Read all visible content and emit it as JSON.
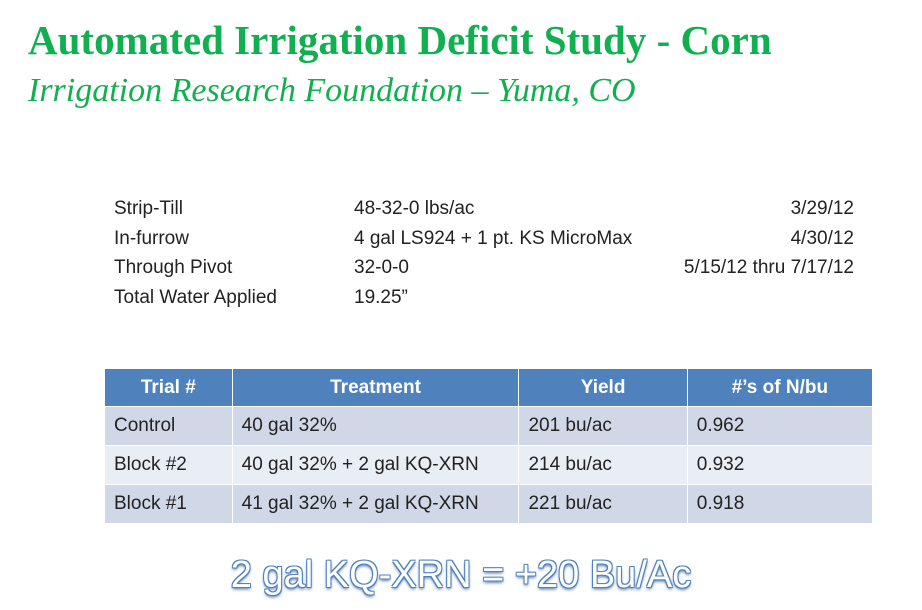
{
  "title": "Automated Irrigation Deficit Study - Corn",
  "subtitle": "Irrigation Research Foundation – Yuma, CO",
  "details": [
    {
      "label": "Strip-Till",
      "value": "48-32-0 lbs/ac",
      "date": "3/29/12"
    },
    {
      "label": "In-furrow",
      "value": "4 gal LS924 + 1 pt. KS MicroMax",
      "date": "4/30/12"
    },
    {
      "label": "Through Pivot",
      "value": "32-0-0",
      "date": "5/15/12 thru 7/17/12"
    },
    {
      "label": "Total Water Applied",
      "value": "19.25”",
      "date": ""
    }
  ],
  "table": {
    "headers": [
      "Trial #",
      "Treatment",
      "Yield",
      "#’s of N/bu"
    ],
    "rows": [
      [
        "Control",
        "40 gal 32%",
        "201 bu/ac",
        "0.962"
      ],
      [
        "Block #2",
        "40 gal 32% + 2 gal KQ-XRN",
        "214 bu/ac",
        "0.932"
      ],
      [
        "Block #1",
        "41 gal 32% + 2 gal KQ-XRN",
        "221 bu/ac",
        "0.918"
      ]
    ]
  },
  "summary": "2 gal KQ-XRN = +20 Bu/Ac"
}
